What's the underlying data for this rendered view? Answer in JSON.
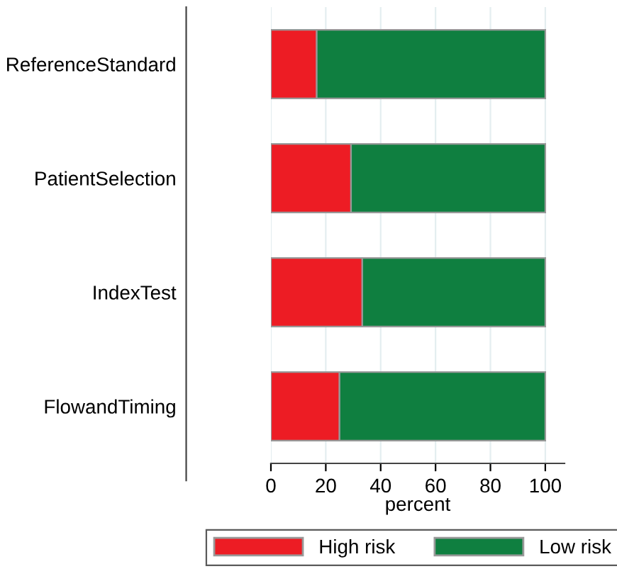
{
  "chart_data": {
    "type": "bar",
    "orientation": "horizontal",
    "stacked": true,
    "categories": [
      "ReferenceStandard",
      "PatientSelection",
      "IndexTest",
      "FlowandTiming"
    ],
    "series": [
      {
        "name": "High risk",
        "color": "#ed1c24",
        "values": [
          16.7,
          29.2,
          33.3,
          25
        ]
      },
      {
        "name": "Low risk",
        "color": "#0f7f40",
        "values": [
          83.3,
          70.8,
          66.7,
          75
        ]
      }
    ],
    "xlabel": "percent",
    "xlim": [
      0,
      107
    ],
    "xticks": [
      0,
      20,
      40,
      60,
      80,
      100
    ],
    "grid": "x",
    "legend": "bottom"
  }
}
